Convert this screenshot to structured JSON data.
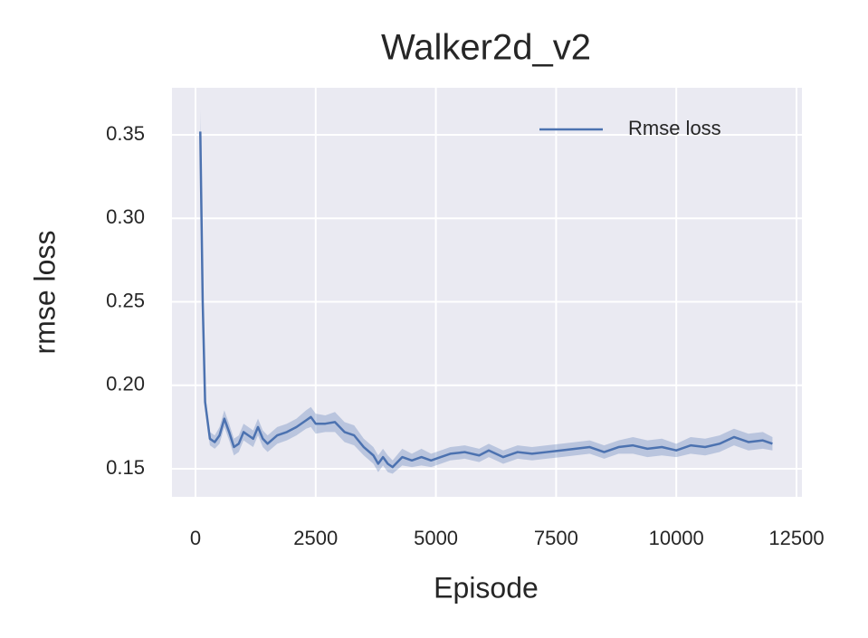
{
  "chart_data": {
    "type": "line",
    "title": "Walker2d_v2",
    "x_label": "Episode",
    "y_label": "rmse loss",
    "x": [
      100,
      150,
      200,
      300,
      400,
      500,
      600,
      700,
      800,
      900,
      1000,
      1100,
      1200,
      1300,
      1400,
      1500,
      1700,
      1900,
      2100,
      2300,
      2400,
      2500,
      2700,
      2900,
      3100,
      3300,
      3500,
      3700,
      3800,
      3900,
      4000,
      4100,
      4300,
      4500,
      4700,
      4900,
      5100,
      5300,
      5600,
      5900,
      6100,
      6400,
      6700,
      7000,
      7300,
      7600,
      7900,
      8200,
      8500,
      8800,
      9100,
      9400,
      9700,
      10000,
      10300,
      10600,
      10900,
      11200,
      11500,
      11800,
      12000
    ],
    "series": [
      {
        "name": "Rmse loss",
        "color": "#4c72b0",
        "values": [
          0.352,
          0.25,
          0.19,
          0.168,
          0.166,
          0.17,
          0.18,
          0.172,
          0.163,
          0.165,
          0.172,
          0.17,
          0.168,
          0.175,
          0.168,
          0.165,
          0.17,
          0.172,
          0.175,
          0.179,
          0.181,
          0.177,
          0.177,
          0.178,
          0.172,
          0.17,
          0.163,
          0.158,
          0.153,
          0.157,
          0.153,
          0.151,
          0.157,
          0.155,
          0.157,
          0.155,
          0.157,
          0.159,
          0.16,
          0.158,
          0.161,
          0.157,
          0.16,
          0.159,
          0.16,
          0.161,
          0.162,
          0.163,
          0.16,
          0.163,
          0.164,
          0.162,
          0.163,
          0.161,
          0.164,
          0.163,
          0.165,
          0.169,
          0.166,
          0.167,
          0.165
        ],
        "lower": [
          0.34,
          0.24,
          0.185,
          0.164,
          0.162,
          0.165,
          0.175,
          0.167,
          0.158,
          0.16,
          0.167,
          0.165,
          0.163,
          0.17,
          0.163,
          0.16,
          0.165,
          0.167,
          0.17,
          0.174,
          0.175,
          0.171,
          0.172,
          0.172,
          0.166,
          0.164,
          0.158,
          0.153,
          0.148,
          0.152,
          0.148,
          0.147,
          0.152,
          0.151,
          0.152,
          0.151,
          0.153,
          0.155,
          0.156,
          0.154,
          0.157,
          0.153,
          0.156,
          0.155,
          0.156,
          0.157,
          0.158,
          0.159,
          0.156,
          0.159,
          0.159,
          0.157,
          0.158,
          0.157,
          0.159,
          0.158,
          0.16,
          0.164,
          0.161,
          0.162,
          0.161
        ],
        "upper": [
          0.365,
          0.26,
          0.195,
          0.172,
          0.17,
          0.175,
          0.185,
          0.177,
          0.168,
          0.17,
          0.177,
          0.175,
          0.173,
          0.18,
          0.173,
          0.17,
          0.175,
          0.177,
          0.18,
          0.185,
          0.187,
          0.183,
          0.182,
          0.184,
          0.178,
          0.176,
          0.168,
          0.163,
          0.158,
          0.162,
          0.158,
          0.155,
          0.162,
          0.159,
          0.162,
          0.159,
          0.161,
          0.163,
          0.164,
          0.162,
          0.165,
          0.161,
          0.164,
          0.163,
          0.164,
          0.165,
          0.166,
          0.167,
          0.164,
          0.167,
          0.169,
          0.167,
          0.168,
          0.165,
          0.169,
          0.168,
          0.17,
          0.174,
          0.171,
          0.172,
          0.169
        ]
      }
    ],
    "xlim": [
      -489,
      12613
    ],
    "ylim": [
      0.1332,
      0.3782
    ],
    "xticks": [
      0,
      2500,
      5000,
      7500,
      10000,
      12500
    ],
    "yticks": [
      0.15,
      {
        "value": 0.2,
        "label": "0.20"
      },
      0.25,
      {
        "value": 0.3,
        "label": "0.30"
      },
      0.35
    ],
    "grid": true,
    "legend": "upper right"
  }
}
